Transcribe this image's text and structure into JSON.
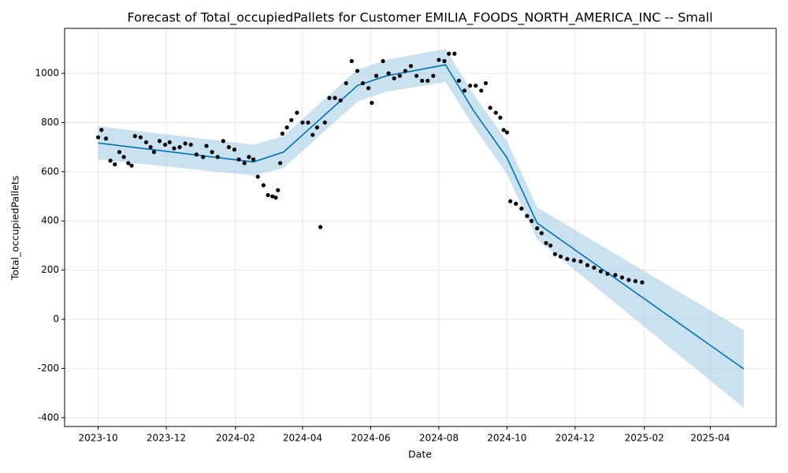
{
  "chart_data": {
    "type": "forecast",
    "title": "Forecast of Total_occupiedPallets for Customer EMILIA_FOODS_NORTH_AMERICA_INC -- Small",
    "x_label": "Date",
    "y_label": "Total_occupiedPallets",
    "xlim": [
      "2023-09-01",
      "2025-05-30"
    ],
    "ylim": [
      -436,
      1183
    ],
    "xticks": [
      {
        "value": "2023-10-01",
        "label": "2023-10"
      },
      {
        "value": "2023-12-01",
        "label": "2023-12"
      },
      {
        "value": "2024-02-01",
        "label": "2024-02"
      },
      {
        "value": "2024-04-01",
        "label": "2024-04"
      },
      {
        "value": "2024-06-01",
        "label": "2024-06"
      },
      {
        "value": "2024-08-01",
        "label": "2024-08"
      },
      {
        "value": "2024-10-01",
        "label": "2024-10"
      },
      {
        "value": "2024-12-01",
        "label": "2024-12"
      },
      {
        "value": "2025-02-01",
        "label": "2025-02"
      },
      {
        "value": "2025-04-01",
        "label": "2025-04"
      }
    ],
    "yticks": [
      -400,
      -200,
      0,
      200,
      400,
      600,
      800,
      1000
    ],
    "grid": true,
    "forecast": {
      "color": "#0072b2",
      "band_color": "#9ec8e3",
      "x": [
        "2023-10-01",
        "2024-02-17",
        "2024-03-15",
        "2024-05-20",
        "2024-06-15",
        "2024-08-07",
        "2024-09-01",
        "2024-10-01",
        "2024-10-28",
        "2025-05-01"
      ],
      "values": [
        717,
        640,
        680,
        950,
        990,
        1035,
        849,
        657,
        391,
        -202
      ],
      "upper": [
        785,
        710,
        745,
        1015,
        1055,
        1100,
        915,
        725,
        455,
        -45
      ],
      "lower": [
        650,
        585,
        615,
        885,
        925,
        965,
        785,
        590,
        325,
        -360
      ]
    },
    "observed": {
      "color": "#000000",
      "x": [
        "2023-10-01",
        "2023-10-04",
        "2023-10-08",
        "2023-10-12",
        "2023-10-16",
        "2023-10-20",
        "2023-10-24",
        "2023-10-28",
        "2023-10-31",
        "2023-11-03",
        "2023-11-08",
        "2023-11-13",
        "2023-11-17",
        "2023-11-20",
        "2023-11-25",
        "2023-11-30",
        "2023-12-04",
        "2023-12-08",
        "2023-12-13",
        "2023-12-18",
        "2023-12-23",
        "2023-12-28",
        "2024-01-03",
        "2024-01-06",
        "2024-01-11",
        "2024-01-16",
        "2024-01-21",
        "2024-01-26",
        "2024-01-31",
        "2024-02-04",
        "2024-02-09",
        "2024-02-13",
        "2024-02-17",
        "2024-02-21",
        "2024-02-26",
        "2024-03-01",
        "2024-03-05",
        "2024-03-08",
        "2024-03-10",
        "2024-03-12",
        "2024-03-14",
        "2024-03-18",
        "2024-03-22",
        "2024-03-27",
        "2024-04-01",
        "2024-04-06",
        "2024-04-10",
        "2024-04-14",
        "2024-04-17",
        "2024-04-21",
        "2024-04-25",
        "2024-04-30",
        "2024-05-05",
        "2024-05-10",
        "2024-05-15",
        "2024-05-20",
        "2024-05-25",
        "2024-05-30",
        "2024-06-02",
        "2024-06-06",
        "2024-06-12",
        "2024-06-17",
        "2024-06-22",
        "2024-06-27",
        "2024-07-02",
        "2024-07-07",
        "2024-07-12",
        "2024-07-17",
        "2024-07-22",
        "2024-07-27",
        "2024-08-01",
        "2024-08-06",
        "2024-08-10",
        "2024-08-15",
        "2024-08-19",
        "2024-08-24",
        "2024-08-29",
        "2024-09-03",
        "2024-09-08",
        "2024-09-12",
        "2024-09-16",
        "2024-09-21",
        "2024-09-25",
        "2024-09-28",
        "2024-10-01",
        "2024-10-04",
        "2024-10-09",
        "2024-10-14",
        "2024-10-19",
        "2024-10-23",
        "2024-10-28",
        "2024-11-01",
        "2024-11-05",
        "2024-11-09",
        "2024-11-13",
        "2024-11-18",
        "2024-11-24",
        "2024-11-30",
        "2024-12-06",
        "2024-12-12",
        "2024-12-18",
        "2024-12-24",
        "2024-12-30",
        "2025-01-06",
        "2025-01-12",
        "2025-01-18",
        "2025-01-24",
        "2025-01-30"
      ],
      "values": [
        740,
        770,
        735,
        645,
        630,
        680,
        660,
        635,
        625,
        745,
        740,
        720,
        700,
        680,
        725,
        710,
        720,
        695,
        700,
        715,
        710,
        670,
        660,
        705,
        680,
        660,
        725,
        700,
        690,
        650,
        635,
        660,
        650,
        580,
        545,
        505,
        500,
        495,
        525,
        635,
        755,
        780,
        810,
        840,
        800,
        800,
        750,
        780,
        375,
        800,
        900,
        900,
        890,
        960,
        1050,
        1010,
        960,
        940,
        880,
        990,
        1050,
        1000,
        980,
        990,
        1010,
        1030,
        990,
        970,
        970,
        990,
        1055,
        1050,
        1080,
        1080,
        970,
        930,
        950,
        950,
        930,
        960,
        860,
        840,
        820,
        770,
        760,
        480,
        470,
        450,
        420,
        400,
        370,
        350,
        310,
        300,
        265,
        255,
        245,
        240,
        235,
        220,
        210,
        195,
        185,
        180,
        170,
        160,
        155,
        150
      ]
    }
  }
}
